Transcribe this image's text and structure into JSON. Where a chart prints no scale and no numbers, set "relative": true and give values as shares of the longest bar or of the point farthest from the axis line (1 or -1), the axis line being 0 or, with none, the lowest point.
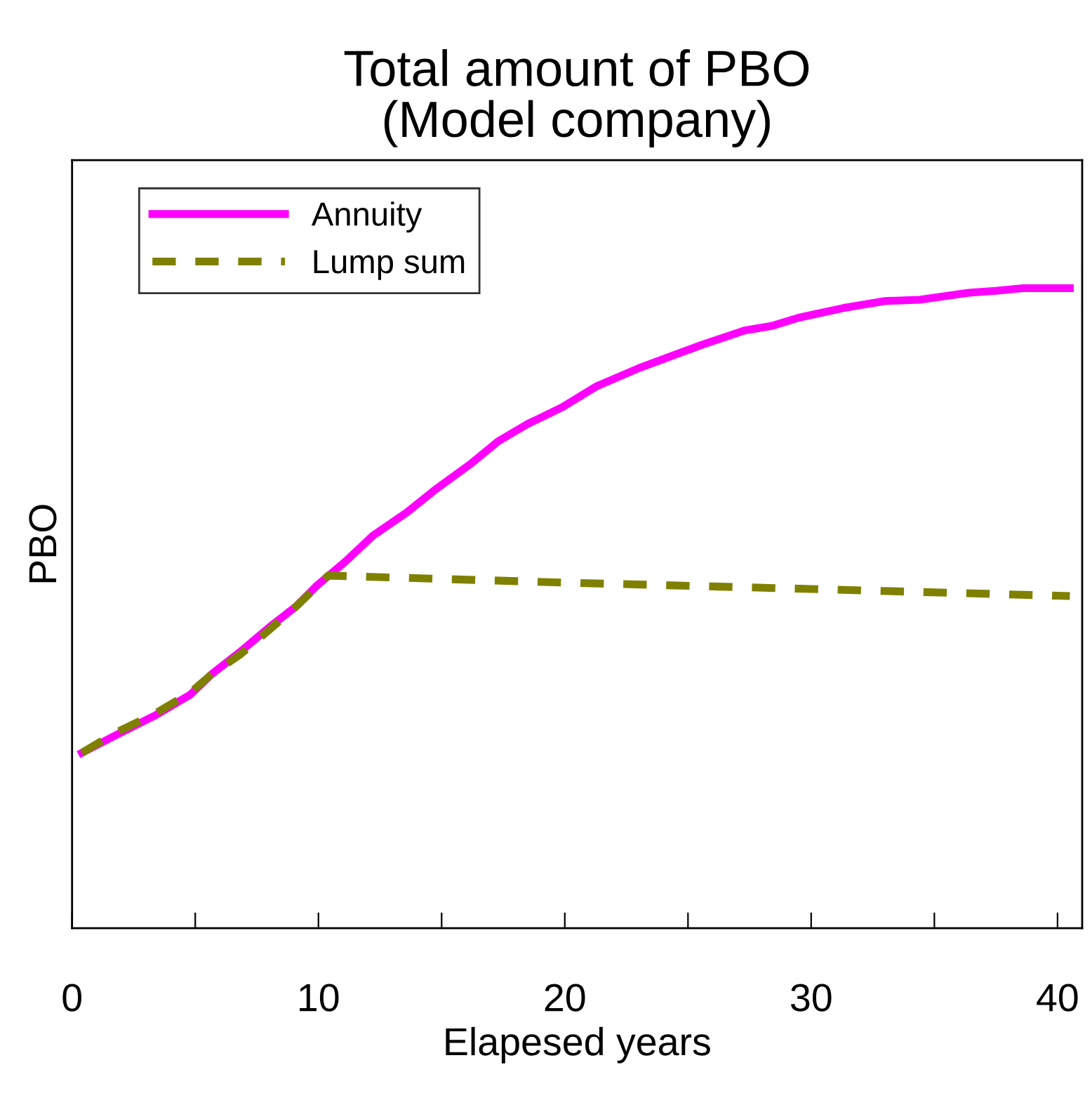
{
  "chart_data": {
    "type": "line",
    "title": "Total amount of PBO\n(Model company)",
    "xlabel": "Elapesed years",
    "ylabel": "PBO",
    "relative": true,
    "tick_labels": "x",
    "legend": "top left",
    "grid": false,
    "xlim": [
      0,
      41
    ],
    "xticks": [
      0,
      {
        "value": 5,
        "label": null
      },
      10,
      {
        "value": 15,
        "label": null
      },
      20,
      {
        "value": 25,
        "label": null
      },
      30,
      {
        "value": 35,
        "label": null
      },
      40
    ],
    "series": [
      {
        "name": "Annuity",
        "color": "#ff00ff",
        "line_style": "solid",
        "x": [
          0.4,
          1.7,
          3.4,
          4.8,
          5.7,
          6.8,
          8.0,
          9.1,
          9.9,
          11.1,
          12.2,
          13.6,
          14.8,
          16.2,
          17.3,
          18.5,
          19.9,
          21.3,
          23.0,
          24.4,
          25.6,
          27.3,
          28.4,
          29.5,
          31.3,
          33.0,
          34.4,
          36.4,
          37.5,
          38.6,
          40.5
        ],
        "values": [
          0.274,
          0.3,
          0.333,
          0.365,
          0.398,
          0.431,
          0.47,
          0.503,
          0.534,
          0.573,
          0.613,
          0.65,
          0.687,
          0.726,
          0.761,
          0.788,
          0.814,
          0.847,
          0.875,
          0.895,
          0.912,
          0.934,
          0.941,
          0.954,
          0.969,
          0.98,
          0.982,
          0.993,
          0.996,
          1.0,
          1.0
        ]
      },
      {
        "name": "Lump sum",
        "color": "#808000",
        "line_style": "dashed",
        "x": [
          0.4,
          1.7,
          3.4,
          4.8,
          5.7,
          6.8,
          8.0,
          9.1,
          10.4,
          20,
          30,
          40.5
        ],
        "values": [
          0.274,
          0.304,
          0.336,
          0.368,
          0.398,
          0.427,
          0.466,
          0.503,
          0.551,
          0.54,
          0.53,
          0.519
        ]
      }
    ]
  }
}
